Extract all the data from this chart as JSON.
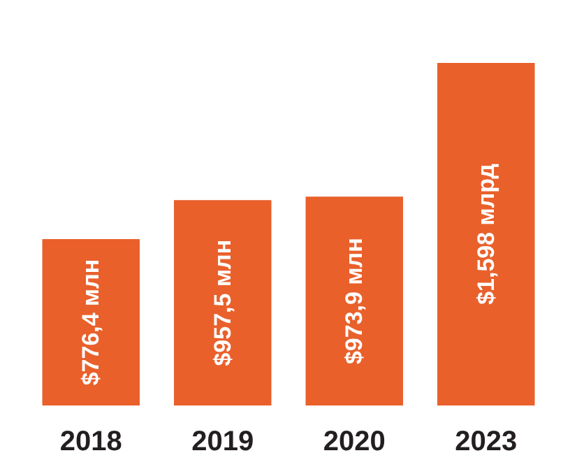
{
  "chart_data": {
    "type": "bar",
    "categories": [
      "2018",
      "2019",
      "2020",
      "2023"
    ],
    "values": [
      776.4,
      957.5,
      973.9,
      1598
    ],
    "value_labels": [
      "$776,4 млн",
      "$957,5 млн",
      "$973,9 млн",
      "$1,598 млрд"
    ],
    "color": "#e9602b"
  }
}
